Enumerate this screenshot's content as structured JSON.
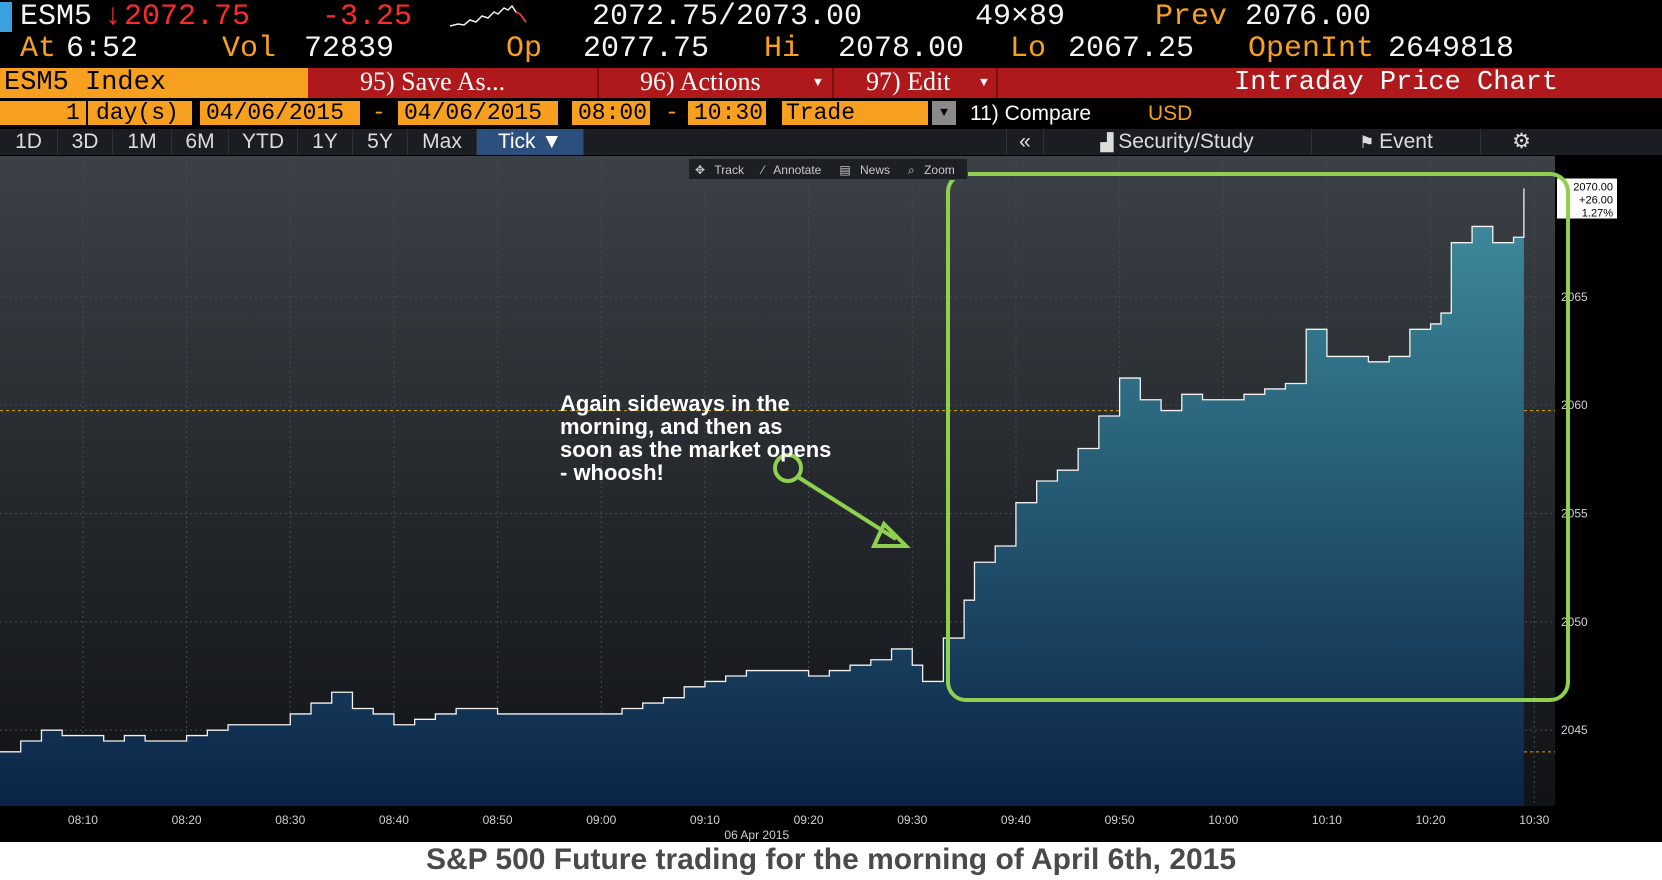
{
  "header": {
    "ticker": "ESM5",
    "last_arrow": "↓",
    "last": "2072.75",
    "change": "-3.25",
    "bid_ask": "2072.75/2073.00",
    "size": "49×89",
    "prev_label": "Prev",
    "prev": "2076.00",
    "at_label": "At",
    "time": "6:52",
    "vol_label": "Vol",
    "vol": "72839",
    "op_label": "Op",
    "op": "2077.75",
    "hi_label": "Hi",
    "hi": "2078.00",
    "lo_label": "Lo",
    "lo": "2067.25",
    "oi_label": "OpenInt",
    "oi": "2649818"
  },
  "toolbar": {
    "security": "ESM5 Index",
    "save_as": "95) Save As...",
    "actions": "96) Actions",
    "edit": "97) Edit",
    "title": "Intraday Price Chart"
  },
  "range": {
    "count": "1",
    "unit": "day(s)",
    "start_date": "04/06/2015",
    "dash1": "-",
    "end_date": "04/06/2015",
    "start_time": "08:00",
    "dash2": "-",
    "end_time": "10:30",
    "type": "Trade",
    "compare": "11) Compare",
    "currency": "USD"
  },
  "tabs": {
    "items": [
      "1D",
      "3D",
      "1M",
      "6M",
      "YTD",
      "1Y",
      "5Y",
      "Max",
      "Tick ▼"
    ],
    "selected": 8,
    "collapse": "«",
    "security_study": "Security/Study",
    "event": "Event",
    "settings_glyph": "⚙"
  },
  "minibar": {
    "track": "Track",
    "annotate": "Annotate",
    "news": "News",
    "zoom": "Zoom"
  },
  "annotation": {
    "text": "Again sideways in the morning, and then as soon as the market opens - whoosh!"
  },
  "caption": "S&P 500 Future trading for the morning of April 6th, 2015",
  "colors": {
    "accent_orange": "#f7a01f",
    "down_red": "#ff2a2a",
    "toolbar_red": "#b0191c",
    "highlight_green": "#8fd14f",
    "area_top": "#3f8fa0",
    "area_bottom": "#0b2346"
  },
  "chart_data": {
    "type": "area",
    "title": "",
    "xlabel": "",
    "ylabel": "",
    "date_label": "06 Apr 2015",
    "x_ticks": [
      "08:10",
      "08:20",
      "08:30",
      "08:40",
      "08:50",
      "09:00",
      "09:10",
      "09:20",
      "09:30",
      "09:40",
      "09:50",
      "10:00",
      "10:10",
      "10:20",
      "10:30"
    ],
    "y_ticks": [
      2045,
      2050,
      2055,
      2060,
      2065
    ],
    "xlim": [
      "08:02",
      "10:32"
    ],
    "ylim": [
      2041.5,
      2071.5
    ],
    "grid": true,
    "reference_lines": [
      2044.0,
      2059.75
    ],
    "last_label": {
      "price": "2070.00",
      "change": "+26.00",
      "pct": "1.27%"
    },
    "series": [
      {
        "x": [
          "08:02",
          "08:04",
          "08:06",
          "08:08",
          "08:10",
          "08:12",
          "08:14",
          "08:16",
          "08:18",
          "08:20",
          "08:22",
          "08:24",
          "08:26",
          "08:28",
          "08:30",
          "08:32",
          "08:34",
          "08:36",
          "08:38",
          "08:40",
          "08:42",
          "08:44",
          "08:46",
          "08:48",
          "08:50",
          "08:52",
          "08:54",
          "08:56",
          "08:58",
          "09:00",
          "09:02",
          "09:04",
          "09:06",
          "09:08",
          "09:10",
          "09:12",
          "09:14",
          "09:16",
          "09:18",
          "09:20",
          "09:22",
          "09:24",
          "09:26",
          "09:28",
          "09:30",
          "09:31",
          "09:33",
          "09:35",
          "09:36",
          "09:38",
          "09:40",
          "09:42",
          "09:44",
          "09:46",
          "09:48",
          "09:50",
          "09:52",
          "09:54",
          "09:56",
          "09:58",
          "10:00",
          "10:02",
          "10:04",
          "10:06",
          "10:08",
          "10:10",
          "10:12",
          "10:14",
          "10:16",
          "10:18",
          "10:20",
          "10:21",
          "10:22",
          "10:24",
          "10:26",
          "10:28",
          "10:29"
        ],
        "values": [
          2044.0,
          2044.5,
          2045.0,
          2044.75,
          2044.75,
          2044.5,
          2044.75,
          2044.5,
          2044.5,
          2044.75,
          2045.0,
          2045.25,
          2045.25,
          2045.25,
          2045.75,
          2046.25,
          2046.75,
          2046.0,
          2045.75,
          2045.25,
          2045.5,
          2045.75,
          2046.0,
          2046.0,
          2045.75,
          2045.75,
          2045.75,
          2045.75,
          2045.75,
          2045.75,
          2046.0,
          2046.25,
          2046.5,
          2047.0,
          2047.25,
          2047.5,
          2047.75,
          2047.75,
          2047.75,
          2047.5,
          2047.75,
          2048.0,
          2048.25,
          2048.75,
          2048.0,
          2047.25,
          2049.25,
          2051.0,
          2052.75,
          2053.5,
          2055.5,
          2056.5,
          2057.0,
          2058.0,
          2059.5,
          2061.25,
          2060.25,
          2059.75,
          2060.5,
          2060.25,
          2060.25,
          2060.5,
          2060.75,
          2061.0,
          2063.5,
          2062.25,
          2062.25,
          2062.0,
          2062.25,
          2063.5,
          2063.75,
          2064.25,
          2067.5,
          2068.25,
          2067.5,
          2067.75,
          2070.0
        ]
      }
    ]
  }
}
